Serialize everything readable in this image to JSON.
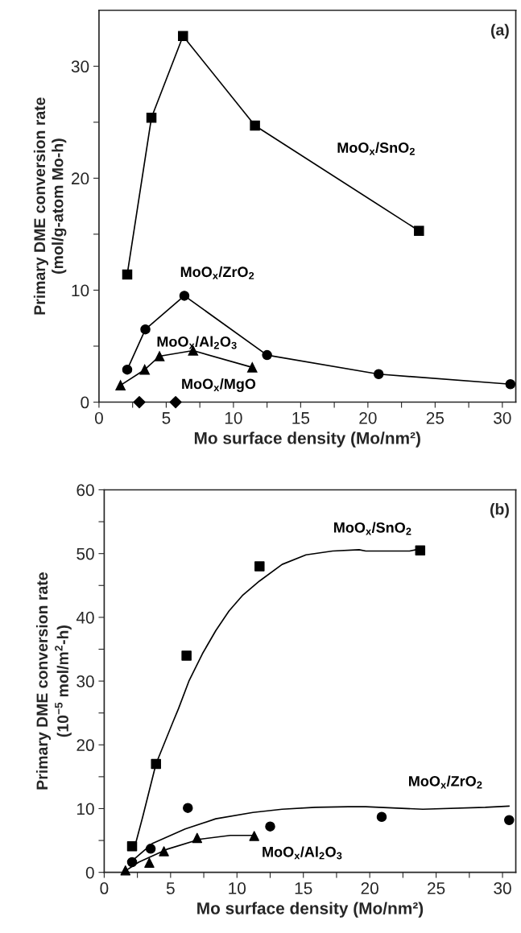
{
  "chart_data": [
    {
      "type": "line",
      "ylabel": "Primary DME conversion rate\n(mol/g-atom Mo-h)",
      "xlabel": "Mo surface density (Mo/nm²)",
      "xlim": [
        0,
        31
      ],
      "ylim": [
        0,
        35
      ],
      "xticks": [
        0,
        {
          "value": 2.5,
          "label": null
        },
        5,
        {
          "value": 7.5,
          "label": null
        },
        10,
        {
          "value": 12.5,
          "label": null
        },
        15,
        {
          "value": 17.5,
          "label": null
        },
        20,
        {
          "value": 22.5,
          "label": null
        },
        25,
        {
          "value": 27.5,
          "label": null
        },
        30
      ],
      "yticks": [
        0,
        {
          "value": 5,
          "label": null
        },
        10,
        {
          "value": 15,
          "label": null
        },
        20,
        {
          "value": 25,
          "label": null
        },
        30
      ],
      "grid": false,
      "line_style": "solid",
      "series": [
        {
          "name": "MoO$_{x}$/SnO$_{2}$",
          "color": "#000000",
          "marker": "square",
          "x": [
            2.1,
            3.9,
            6.25,
            11.6,
            23.8
          ],
          "values": [
            11.4,
            25.4,
            32.7,
            24.7,
            15.3
          ]
        },
        {
          "name": "MoO$_{x}$/ZrO$_{2}$",
          "color": "#000000",
          "marker": "circle",
          "x": [
            2.1,
            3.45,
            6.35,
            12.5,
            20.8,
            30.6
          ],
          "values": [
            2.9,
            6.5,
            9.5,
            4.2,
            2.5,
            1.6
          ]
        },
        {
          "name": "MoO$_{x}$/Al$_{2}$O$_{3}$",
          "color": "#000000",
          "marker": "triangle",
          "x": [
            1.6,
            3.4,
            4.5,
            7.0,
            11.4
          ],
          "values": [
            1.5,
            2.9,
            4.1,
            4.6,
            3.1
          ]
        },
        {
          "name": "MoO$_{x}$/MgO",
          "type": "scatter",
          "color": "#000000",
          "marker": "diamond",
          "x": [
            3.0,
            5.7
          ],
          "values": [
            0,
            0
          ]
        }
      ],
      "annotations": [
        "(a)"
      ]
    },
    {
      "type": "scatter",
      "ylabel": "Primary DME conversion rate\n(10$^{−5}$ mol/m$^{2}$-h)",
      "xlabel": "Mo surface density (Mo/nm²)",
      "xlim": [
        0,
        31
      ],
      "ylim": [
        0,
        60
      ],
      "xticks": [
        0,
        {
          "value": 2.5,
          "label": null
        },
        5,
        {
          "value": 7.5,
          "label": null
        },
        10,
        {
          "value": 12.5,
          "label": null
        },
        15,
        {
          "value": 17.5,
          "label": null
        },
        20,
        {
          "value": 22.5,
          "label": null
        },
        25,
        {
          "value": 27.5,
          "label": null
        },
        30
      ],
      "yticks": [
        0,
        {
          "value": 5,
          "label": null
        },
        10,
        {
          "value": 15,
          "label": null
        },
        20,
        {
          "value": 25,
          "label": null
        },
        30,
        {
          "value": 35,
          "label": null
        },
        40,
        {
          "value": 45,
          "label": null
        },
        50,
        {
          "value": 55,
          "label": null
        },
        60
      ],
      "grid": false,
      "series": [
        {
          "name": "MoO$_{x}$/SnO$_{2}$",
          "color": "#000000",
          "marker": "square",
          "x": [
            2.1,
            3.9,
            6.2,
            11.7,
            23.8
          ],
          "values": [
            4.1,
            17.0,
            34.0,
            48.0,
            50.5
          ]
        },
        {
          "name": "MoO$_{x}$/ZrO$_{2}$",
          "color": "#000000",
          "marker": "circle",
          "x": [
            2.1,
            3.5,
            6.3,
            12.5,
            20.9,
            30.5
          ],
          "values": [
            1.6,
            3.7,
            10.1,
            7.2,
            8.7,
            8.2
          ]
        },
        {
          "name": "MoO$_{x}$/Al$_{2}$O$_{3}$",
          "color": "#000000",
          "marker": "triangle",
          "x": [
            1.6,
            3.4,
            4.5,
            7.0,
            11.3
          ],
          "values": [
            0.3,
            1.5,
            3.3,
            5.4,
            5.7
          ]
        },
        {
          "type": "line",
          "color": "#000000",
          "marker": "none",
          "line_style": "solid",
          "x": [
            2.3,
            2.9,
            3.9,
            5.2,
            5.6,
            6.4,
            7.4,
            8.4,
            9.4,
            10.4,
            11.7,
            13.4,
            15.2,
            17.2,
            19.2,
            19.7,
            23.0,
            23.5
          ],
          "values": [
            4.0,
            8.7,
            17.0,
            23.7,
            25.7,
            30.1,
            34.3,
            37.9,
            41.0,
            43.4,
            45.7,
            48.3,
            49.8,
            50.4,
            50.6,
            50.4,
            50.4,
            50.6
          ]
        },
        {
          "type": "line",
          "color": "#000000",
          "marker": "none",
          "line_style": "solid",
          "x": [
            2.0,
            3.6,
            6.1,
            8.4,
            11.2,
            13.4,
            15.9,
            18.4,
            19.7,
            24.0,
            28.7,
            30.5
          ],
          "values": [
            1.6,
            4.5,
            6.8,
            8.4,
            9.4,
            9.9,
            10.2,
            10.3,
            10.3,
            9.9,
            10.2,
            10.4
          ]
        },
        {
          "type": "line",
          "color": "#000000",
          "marker": "none",
          "line_style": "solid",
          "x": [
            1.5,
            2.6,
            4.7,
            7.2,
            9.5,
            11.3
          ],
          "values": [
            0.1,
            1.6,
            3.6,
            5.2,
            5.8,
            5.8
          ]
        }
      ],
      "annotations": [
        "(b)"
      ]
    }
  ]
}
